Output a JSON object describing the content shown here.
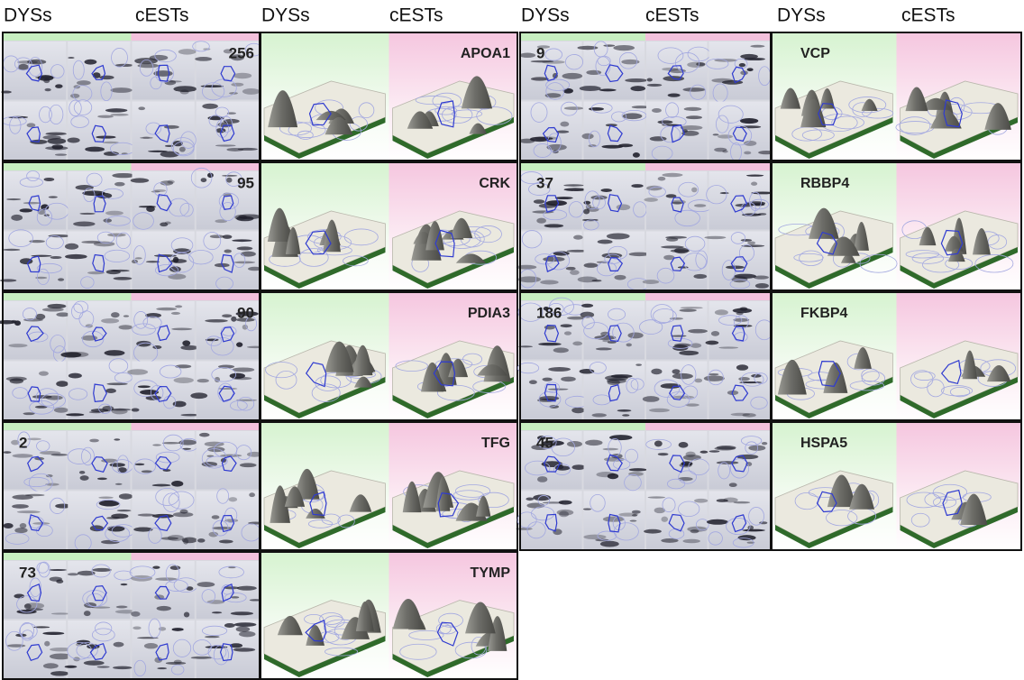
{
  "headers": [
    "DYSs",
    "cESTs",
    "DYSs",
    "cESTs",
    "DYSs",
    "cESTs",
    "DYSs",
    "cESTs"
  ],
  "left_group": {
    "rows": [
      {
        "spot": "256",
        "protein": "APOA1"
      },
      {
        "spot": "95",
        "protein": "CRK"
      },
      {
        "spot": "90",
        "protein": "PDIA3"
      },
      {
        "spot": "2",
        "protein": "TFG"
      },
      {
        "spot": "73",
        "protein": "TYMP"
      }
    ]
  },
  "right_group": {
    "rows": [
      {
        "spot": "9",
        "protein": "VCP"
      },
      {
        "spot": "37",
        "protein": "RBBP4"
      },
      {
        "spot": "186",
        "protein": "FKBP4"
      },
      {
        "spot": "45",
        "protein": "HSPA5"
      }
    ]
  }
}
